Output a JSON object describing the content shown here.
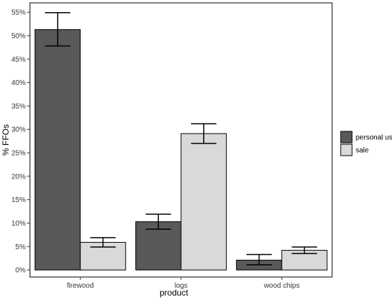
{
  "chart_data": {
    "type": "bar",
    "categories": [
      "firewood",
      "logs",
      "wood chips"
    ],
    "series": [
      {
        "name": "personal use",
        "color": "#595959",
        "values": [
          51.3,
          10.3,
          2.1
        ],
        "error_low": [
          47.8,
          8.7,
          1.1
        ],
        "error_high": [
          54.9,
          11.9,
          3.3
        ]
      },
      {
        "name": "sale",
        "color": "#d9d9d9",
        "values": [
          5.9,
          29.1,
          4.2
        ],
        "error_low": [
          4.9,
          27.0,
          3.5
        ],
        "error_high": [
          6.9,
          31.2,
          4.9
        ]
      }
    ],
    "xlabel": "product",
    "ylabel": "% FFOs",
    "ylim": [
      -1.5,
      57
    ],
    "yticks": [
      0,
      5,
      10,
      15,
      20,
      25,
      30,
      35,
      40,
      45,
      50,
      55
    ],
    "ytick_labels": [
      "0%",
      "5%",
      "10%",
      "15%",
      "20%",
      "25%",
      "30%",
      "35%",
      "40%",
      "45%",
      "50%",
      "55%"
    ],
    "grid": false,
    "legend_position": "right"
  }
}
